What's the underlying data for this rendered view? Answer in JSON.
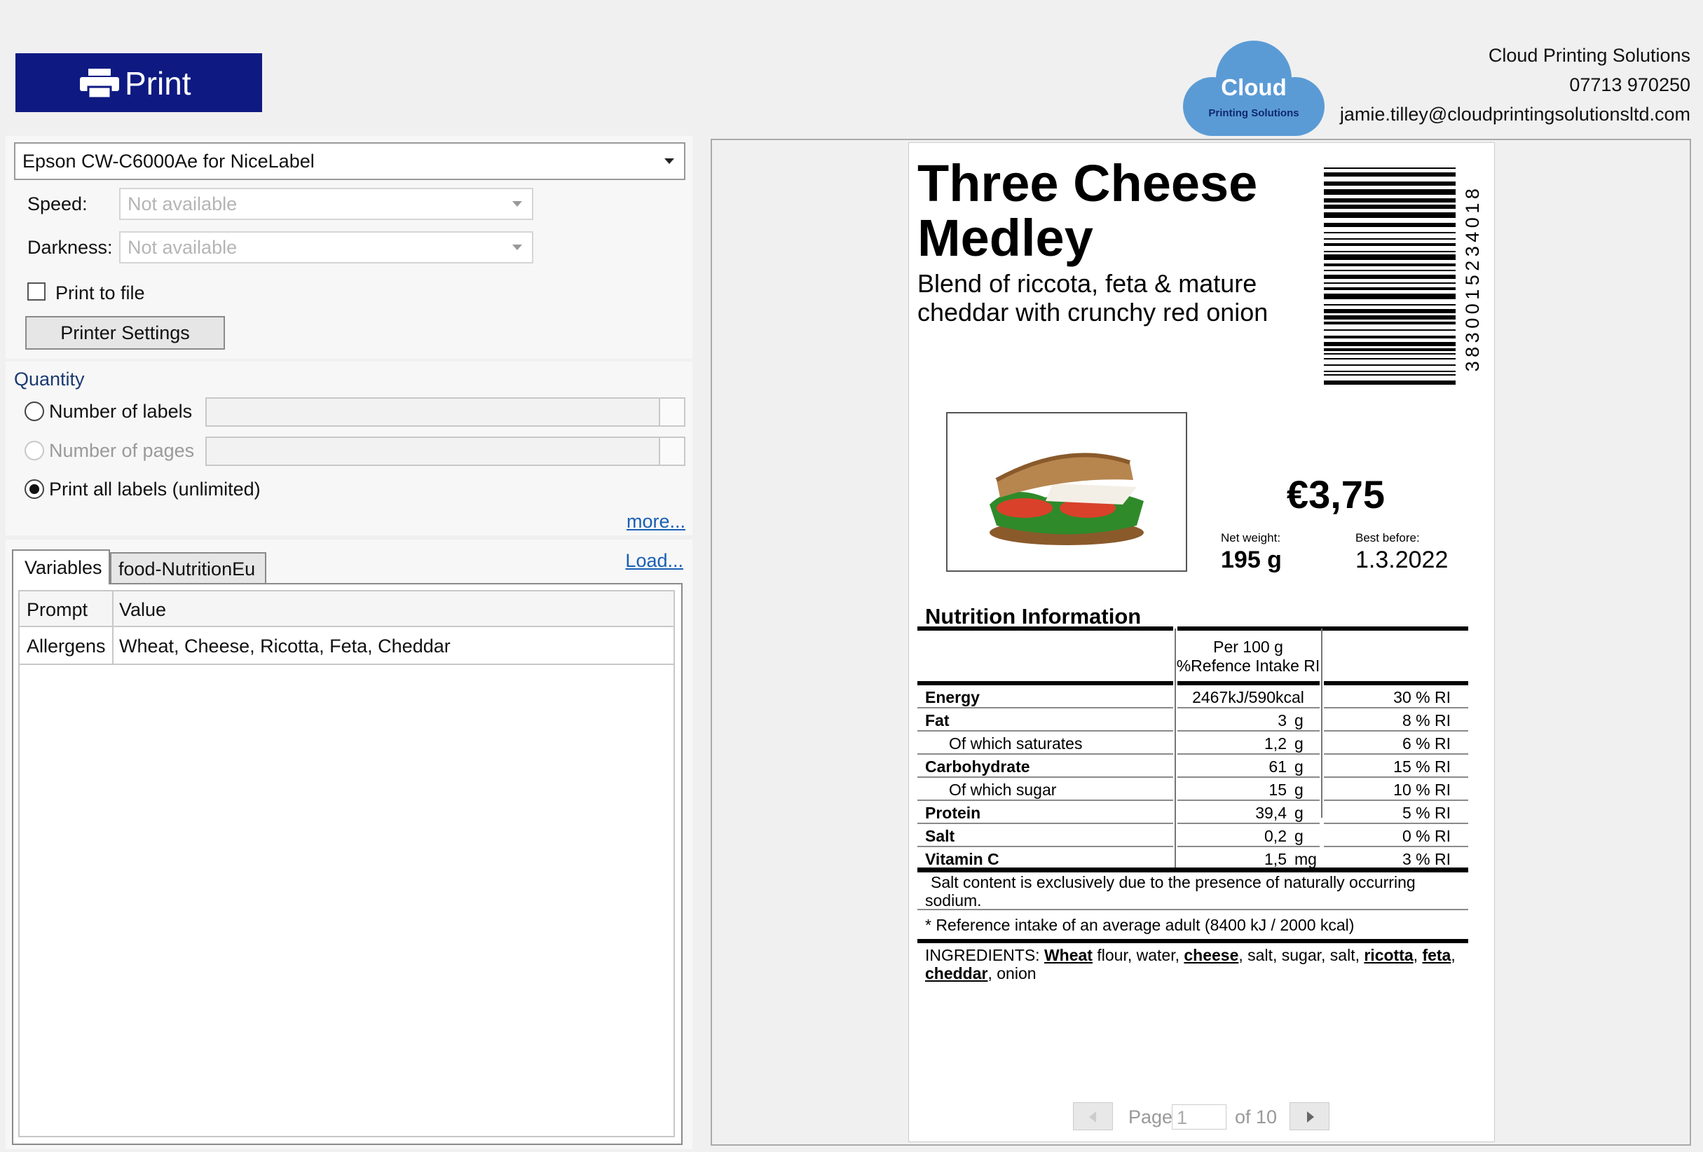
{
  "print_button": "Print",
  "company": {
    "name": "Cloud Printing Solutions",
    "phone": "07713 970250",
    "email": "jamie.tilley@cloudprintingsolutionsltd.com"
  },
  "logo": {
    "line1": "Cloud",
    "line2": "Printing Solutions"
  },
  "printer": {
    "selected": "Epson CW-C6000Ae for NiceLabel",
    "speed_label": "Speed:",
    "speed_value": "Not available",
    "darkness_label": "Darkness:",
    "darkness_value": "Not available",
    "print_to_file": "Print to file",
    "settings_button": "Printer Settings"
  },
  "quantity": {
    "title": "Quantity",
    "options": [
      "Number of labels",
      "Number of pages",
      "Print all labels (unlimited)"
    ],
    "more": "more..."
  },
  "variables": {
    "tabs": [
      "Variables",
      "food-NutritionEu"
    ],
    "load": "Load...",
    "columns": [
      "Prompt",
      "Value"
    ],
    "rows": [
      [
        "Allergens",
        "Wheat, Cheese, Ricotta, Feta, Cheddar"
      ]
    ]
  },
  "label": {
    "title_lines": [
      "Three Cheese",
      "Medley"
    ],
    "description_lines": [
      "Blend of riccota, feta & mature",
      "cheddar with crunchy red onion"
    ],
    "barcode": "3830015234018",
    "price": "€3,75",
    "net_weight_label": "Net weight:",
    "net_weight": "195 g",
    "best_before_label": "Best before:",
    "best_before": "1.3.2022",
    "nutrition": {
      "title": "Nutrition Information",
      "header": [
        "Per 100 g",
        "%Refence Intake RI"
      ],
      "rows": [
        {
          "name": "Energy",
          "amount": "2467kJ/590kcal",
          "ri": "30 % RI"
        },
        {
          "name": "Fat",
          "amount": "3",
          "unit": "g",
          "ri": "8 % RI"
        },
        {
          "name": "Of which saturates",
          "amount": "1,2",
          "unit": "g",
          "ri": "6 % RI",
          "sub": true
        },
        {
          "name": "Carbohydrate",
          "amount": "61",
          "unit": "g",
          "ri": "15 % RI"
        },
        {
          "name": "Of which sugar",
          "amount": "15",
          "unit": "g",
          "ri": "10 % RI",
          "sub": true
        },
        {
          "name": "Protein",
          "amount": "39,4",
          "unit": "g",
          "ri": "5 % RI"
        },
        {
          "name": "Salt",
          "amount": "0,2",
          "unit": "g",
          "ri": "0 % RI"
        },
        {
          "name": "Vitamin C",
          "amount": "1,5",
          "unit": "mg",
          "ri": "3 % RI"
        }
      ],
      "salt_note": "Salt content is exclusively due to the presence of naturally occurring sodium.",
      "reference_note": "* Reference intake of an average adult (8400 kJ / 2000 kcal)",
      "ingredients": [
        {
          "text": "INGREDIENTS: "
        },
        {
          "text": "Wheat",
          "allergen": true
        },
        {
          "text": " flour, water, "
        },
        {
          "text": "cheese",
          "allergen": true
        },
        {
          "text": ", salt, sugar, salt, "
        },
        {
          "text": "ricotta",
          "allergen": true
        },
        {
          "text": ", "
        },
        {
          "text": "feta",
          "allergen": true
        },
        {
          "text": ", "
        },
        {
          "text": "cheddar",
          "allergen": true
        },
        {
          "text": ", onion"
        }
      ]
    }
  },
  "pager": {
    "page": "Page",
    "current": "1",
    "of": "of 10"
  }
}
